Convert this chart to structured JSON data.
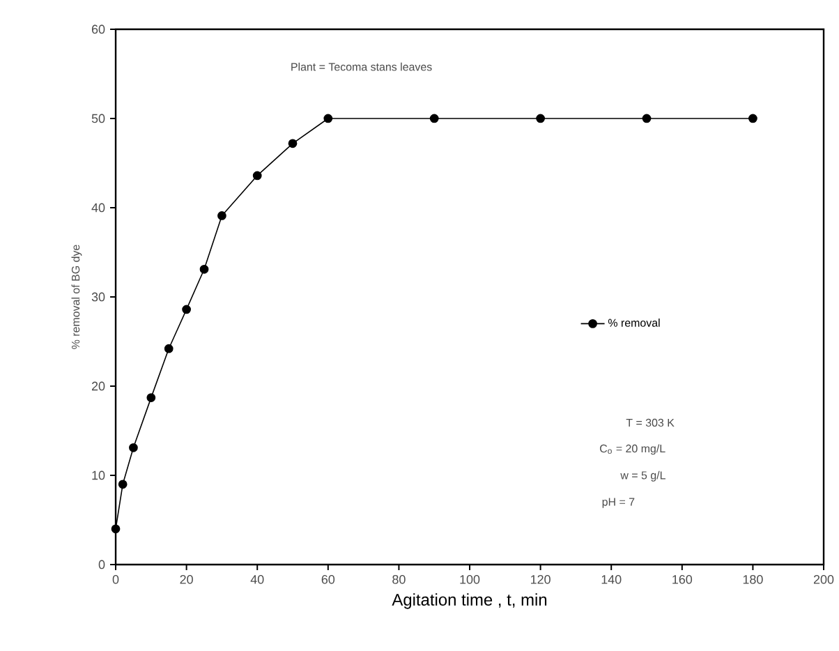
{
  "chart_data": {
    "type": "line",
    "xlabel": "Agitation time , t, min",
    "ylabel": "% removal of BG dye",
    "x": [
      0,
      2,
      5,
      10,
      15,
      20,
      25,
      30,
      40,
      50,
      60,
      90,
      120,
      150,
      180
    ],
    "series": [
      {
        "name": "% removal",
        "color": "#000000",
        "values": [
          4,
          9,
          13.1,
          18.7,
          24.2,
          28.6,
          33.1,
          39.1,
          43.6,
          47.2,
          50,
          50,
          50,
          50,
          50
        ]
      }
    ],
    "xlim": [
      0,
      200
    ],
    "xticks": [
      0,
      20,
      40,
      60,
      80,
      100,
      120,
      140,
      160,
      180,
      200
    ],
    "ylim": [
      0,
      60
    ],
    "yticks": [
      0,
      10,
      20,
      30,
      40,
      50,
      60
    ],
    "annotations": [
      "Plant = Tecoma stans leaves",
      "T = 303 K",
      "C$_{o}$ = 20 mg/L",
      "w = 5 g/L",
      "pH = 7"
    ],
    "legend": "right",
    "marker": "circle",
    "line_style": "solid",
    "grid": false
  }
}
